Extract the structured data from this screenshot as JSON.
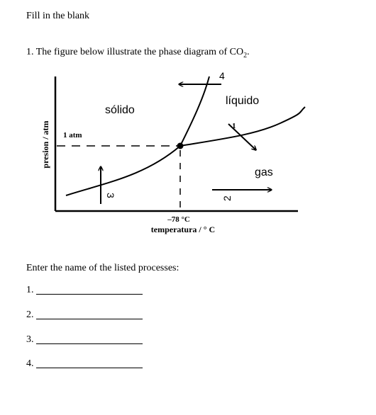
{
  "heading": "Fill in the blank",
  "question": {
    "text": "1. The figure below illustrate the phase diagram of CO",
    "subscript": "2",
    "suffix": "."
  },
  "diagram": {
    "y_axis_label": "presion / atm",
    "x_axis_label": "temperatura / ° C",
    "pressure_label": "1 atm",
    "temperature_label": "–78 °C",
    "regions": {
      "solid": "sólido",
      "liquid": "líquido",
      "gas": "gas"
    },
    "process_markers": [
      "1",
      "2",
      "3",
      "4"
    ]
  },
  "instruction": "Enter the name of the listed processes:",
  "answers": [
    "1.",
    "2.",
    "3.",
    "4."
  ]
}
